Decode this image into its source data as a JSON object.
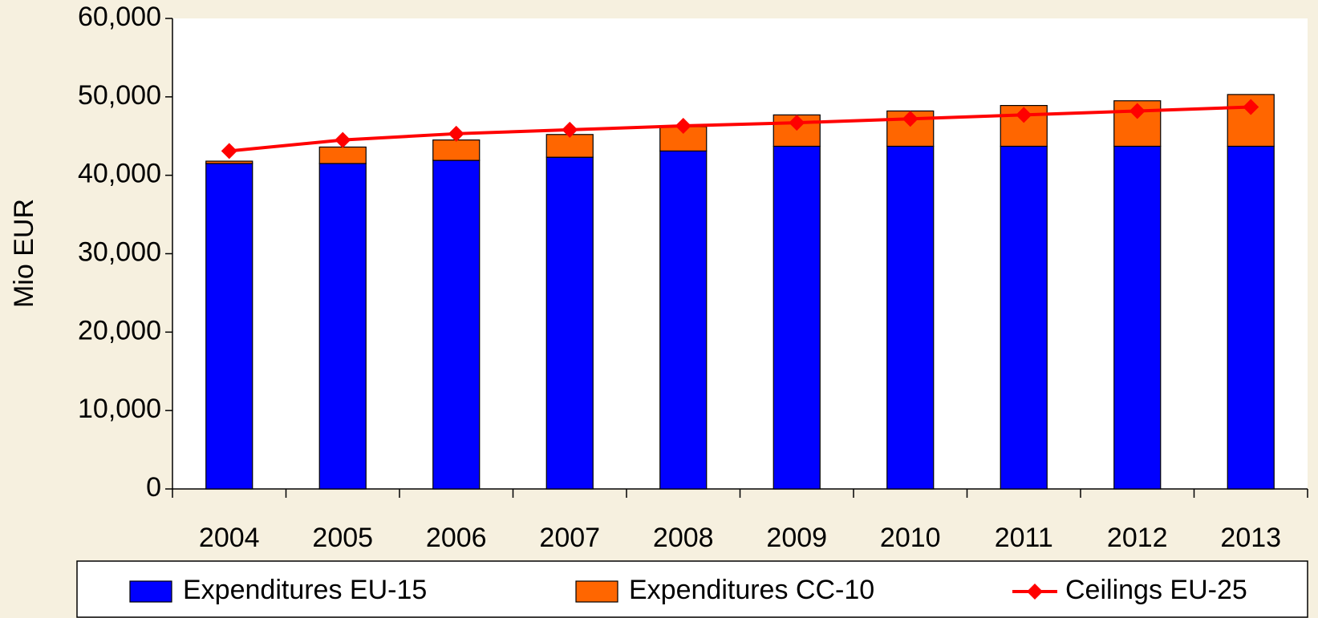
{
  "chart_data": {
    "type": "bar",
    "stacked": true,
    "y_label": "Mio EUR",
    "categories": [
      "2004",
      "2005",
      "2006",
      "2007",
      "2008",
      "2009",
      "2010",
      "2011",
      "2012",
      "2013"
    ],
    "series": [
      {
        "name": "Expenditures EU-15",
        "type": "bar",
        "color": "#0000ff",
        "values": [
          41500,
          41500,
          41900,
          42300,
          43100,
          43700,
          43700,
          43700,
          43700,
          43700
        ]
      },
      {
        "name": "Expenditures CC-10",
        "type": "bar",
        "color": "#ff6600",
        "values": [
          300,
          2100,
          2600,
          2900,
          3100,
          4000,
          4500,
          5200,
          5800,
          6600
        ]
      },
      {
        "name": "Ceilings EU-25",
        "type": "line",
        "color": "#ff0000",
        "values": [
          43100,
          44500,
          45300,
          45800,
          46300,
          46700,
          47200,
          47700,
          48200,
          48700
        ]
      }
    ],
    "ylim": [
      0,
      60000
    ],
    "yticks": [
      {
        "value": 0,
        "label": "0"
      },
      {
        "value": 10000,
        "label": "10,000"
      },
      {
        "value": 20000,
        "label": "20,000"
      },
      {
        "value": 30000,
        "label": "30,000"
      },
      {
        "value": 40000,
        "label": "40,000"
      },
      {
        "value": 50000,
        "label": "50,000"
      },
      {
        "value": 60000,
        "label": "60,000"
      }
    ],
    "legend": "bottom"
  }
}
